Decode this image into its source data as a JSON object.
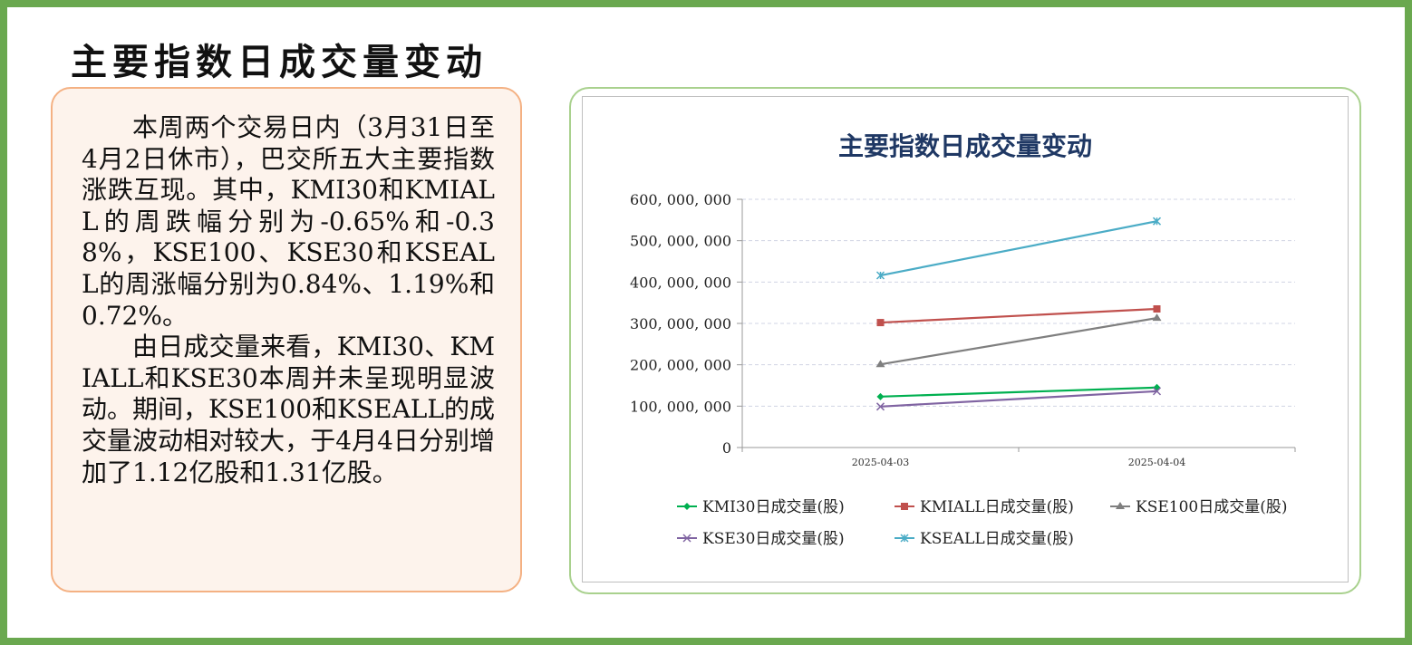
{
  "page": {
    "title": "主要指数日成交量变动",
    "paragraphs": [
      "本周两个交易日内（3月31日至4月2日休市），巴交所五大主要指数涨跌互现。其中，KMI30和KMIALL的周跌幅分别为-0.65%和-0.38%，KSE100、KSE30和KSEALL的周涨幅分别为0.84%、1.19%和0.72%。",
      "由日成交量来看，KMI30、KMIALL和KSE30本周并未呈现明显波动。期间，KSE100和KSEALL的成交量波动相对较大，于4月4日分别增加了1.12亿股和1.31亿股。"
    ],
    "colors": {
      "border": "#6aa84f",
      "text_box_bg": "#fdf3ec",
      "text_box_border": "#f4b183",
      "chart_box_border": "#a9d18e"
    }
  },
  "chart_data": {
    "type": "line",
    "title": "主要指数日成交量变动",
    "categories": [
      "2025-04-03",
      "2025-04-04"
    ],
    "ylim": [
      0,
      600000000
    ],
    "yticks": [
      "0",
      "100, 000, 000",
      "200, 000, 000",
      "300, 000, 000",
      "400, 000, 000",
      "500, 000, 000",
      "600, 000, 000"
    ],
    "ytick_values": [
      0,
      100000000,
      200000000,
      300000000,
      400000000,
      500000000,
      600000000
    ],
    "grid": "horizontal dashed",
    "legend_position": "bottom",
    "series": [
      {
        "name": "KMI30日成交量(股)",
        "values": [
          123000000,
          145000000
        ],
        "color": "#00b050",
        "marker": "diamond"
      },
      {
        "name": "KMIALL日成交量(股)",
        "values": [
          302000000,
          335000000
        ],
        "color": "#c0504d",
        "marker": "square"
      },
      {
        "name": "KSE100日成交量(股)",
        "values": [
          201000000,
          313000000
        ],
        "color": "#7f7f7f",
        "marker": "triangle"
      },
      {
        "name": "KSE30日成交量(股)",
        "values": [
          99000000,
          136000000
        ],
        "color": "#8064a2",
        "marker": "x"
      },
      {
        "name": "KSEALL日成交量(股)",
        "values": [
          416000000,
          547000000
        ],
        "color": "#4bacc6",
        "marker": "star"
      }
    ]
  }
}
